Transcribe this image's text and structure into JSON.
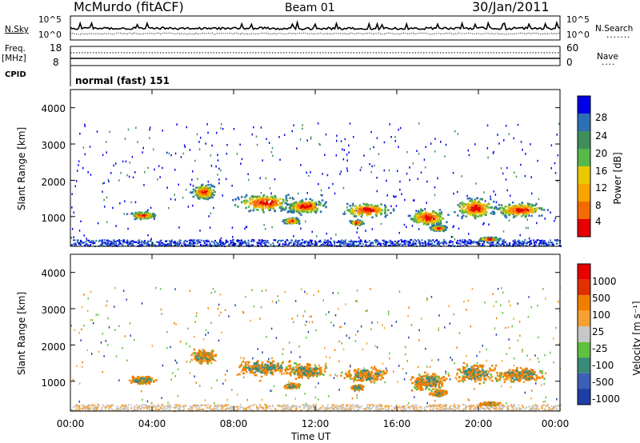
{
  "header": {
    "station": "McMurdo (fitACF)",
    "beam": "Beam 01",
    "date": "30/Jan/2011"
  },
  "noise_panel": {
    "left_label": "N.Sky",
    "right_label": "N.Search",
    "left_ticks": [
      "10^5",
      "10^0"
    ],
    "right_ticks": [
      "10^5",
      "10^0"
    ]
  },
  "freq_panel": {
    "left_label_1": "Freq.",
    "left_label_2": "[MHz]",
    "right_label": "Nave",
    "left_ticks": [
      "18",
      "8"
    ],
    "right_ticks": [
      "60",
      "0"
    ]
  },
  "cpid_panel": {
    "label": "CPID",
    "value": "normal (fast) 151"
  },
  "chart_data": [
    {
      "type": "heatmap",
      "quantity": "Power",
      "ylabel": "Slant Range [km]",
      "xlabel": "Time UT",
      "ylim": [
        180,
        4500
      ],
      "yticks": [
        "4000",
        "3000",
        "2000",
        "1000"
      ],
      "xticks": [
        "00:00",
        "04:00",
        "08:00",
        "12:00",
        "16:00",
        "20:00",
        "00:00"
      ],
      "colorbar_label": "Power [dB]",
      "colorbar_ticks": [
        "28",
        "24",
        "20",
        "16",
        "12",
        "8",
        "4"
      ],
      "colors": [
        "#0000e6",
        "#2c6fb5",
        "#3e8f5b",
        "#56b848",
        "#e8c800",
        "#f7a300",
        "#f56a00",
        "#e60000"
      ]
    },
    {
      "type": "heatmap",
      "quantity": "Velocity",
      "ylabel": "Slant Range [km]",
      "xlabel": "Time UT",
      "ylim": [
        180,
        4500
      ],
      "yticks": [
        "4000",
        "3000",
        "2000",
        "1000"
      ],
      "xticks": [
        "00:00",
        "04:00",
        "08:00",
        "12:00",
        "16:00",
        "20:00",
        "00:00"
      ],
      "colorbar_label": "Velocity [m s⁻¹]",
      "colorbar_ticks": [
        "1000",
        "500",
        "100",
        "25",
        "-25",
        "-100",
        "-500",
        "-1000"
      ],
      "colors": [
        "#1f3fa6",
        "#3e5fb8",
        "#3a8a7a",
        "#60c040",
        "#c8c8c8",
        "#f5a030",
        "#f07f00",
        "#e03000",
        "#e60000"
      ]
    }
  ],
  "x_axis_title": "Time UT"
}
